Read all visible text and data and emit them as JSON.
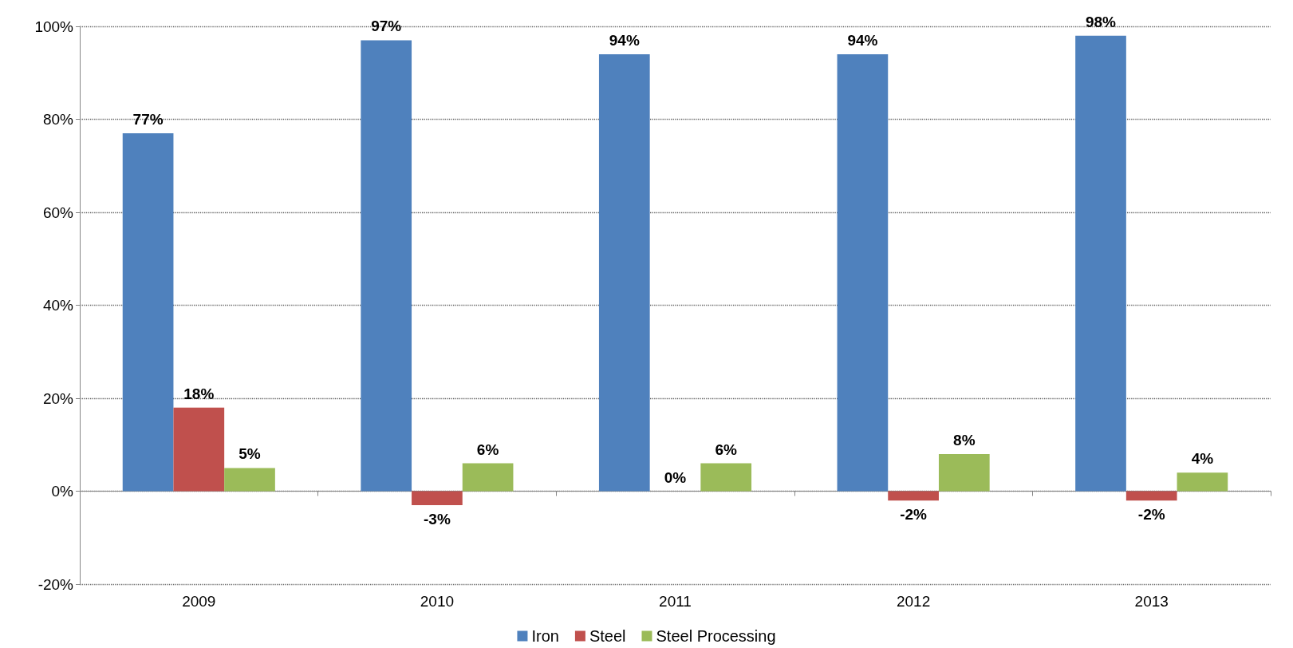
{
  "chart_data": {
    "type": "bar",
    "categories": [
      "2009",
      "2010",
      "2011",
      "2012",
      "2013"
    ],
    "series": [
      {
        "name": "Iron",
        "color": "#4f81bd",
        "values": [
          77,
          97,
          94,
          94,
          98
        ],
        "value_labels": [
          "77%",
          "97%",
          "94%",
          "94%",
          "98%"
        ]
      },
      {
        "name": "Steel",
        "color": "#c0504d",
        "values": [
          18,
          -3,
          0,
          -2,
          -2
        ],
        "value_labels": [
          "18%",
          "-3%",
          "0%",
          "-2%",
          "-2%"
        ]
      },
      {
        "name": "Steel Processing",
        "color": "#9bbb59",
        "values": [
          5,
          6,
          6,
          8,
          4
        ],
        "value_labels": [
          "5%",
          "6%",
          "6%",
          "8%",
          "4%"
        ]
      }
    ],
    "ylim": [
      -20,
      100
    ],
    "yticks": [
      {
        "value": -20,
        "label": "-20%"
      },
      {
        "value": 0,
        "label": "0%"
      },
      {
        "value": 20,
        "label": "20%"
      },
      {
        "value": 40,
        "label": "40%"
      },
      {
        "value": 60,
        "label": "60%"
      },
      {
        "value": 80,
        "label": "80%"
      },
      {
        "value": 100,
        "label": "100%"
      }
    ],
    "grid": "y",
    "legend": "bottom"
  }
}
